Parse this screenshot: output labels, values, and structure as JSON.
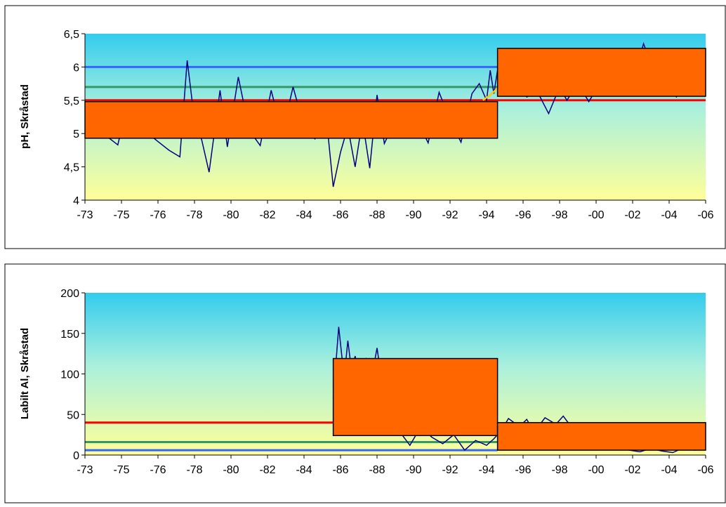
{
  "colors": {
    "orange_box": "#ff6600",
    "trace": "#000080",
    "red_line": "#ff0000",
    "green_line": "#339966",
    "blue_line": "#3366ff",
    "yellow_line": "#ffcc00",
    "bg_top": "#33ccee",
    "bg_bottom": "#ffff99"
  },
  "x_tick_labels": [
    "-73",
    "-75",
    "-76",
    "-78",
    "-80",
    "-82",
    "-84",
    "-86",
    "-88",
    "-90",
    "-92",
    "-94",
    "-96",
    "-98",
    "-00",
    "-02",
    "-04",
    "-06"
  ],
  "chart_data": [
    {
      "type": "line",
      "ylabel": "pH, Skråstad",
      "ylim": [
        4,
        6.5
      ],
      "y_ticks": [
        4,
        4.5,
        5,
        5.5,
        6,
        6.5
      ],
      "y_tick_labels": [
        "4",
        "4,5",
        "5",
        "5,5",
        "6",
        "6,5"
      ],
      "grid": false,
      "reference_lines": [
        {
          "color": "blue_line",
          "y": 6.0,
          "x_from": 0,
          "x_to": 11.3
        },
        {
          "color": "green_line",
          "y": 5.7,
          "x_from": 0,
          "x_to": 11.3
        },
        {
          "color": "red_line",
          "y": 5.5,
          "x_from": 0,
          "x_to": 17
        }
      ],
      "boxes": [
        {
          "x_from": 0,
          "x_to": 11.3,
          "y_low": 4.93,
          "y_high": 5.48
        },
        {
          "x_from": 11.3,
          "x_to": 17,
          "y_low": 5.56,
          "y_high": 6.28
        }
      ],
      "series": [
        {
          "x": [
            0,
            0.5,
            0.9,
            1.1,
            1.5,
            2.0,
            2.3,
            2.6,
            2.8,
            3.0,
            3.2,
            3.4,
            3.7,
            3.9,
            4.2,
            4.5,
            4.8,
            5.1,
            5.4,
            5.7,
            6.0,
            6.3,
            6.6,
            6.8,
            7.0,
            7.2,
            7.4,
            7.6,
            7.8,
            8.0,
            8.2,
            8.5,
            8.8,
            9.1,
            9.4,
            9.7,
            10.0,
            10.3,
            10.6,
            10.8,
            11.0,
            11.1,
            11.2,
            11.3,
            11.5,
            11.8,
            12.1,
            12.4,
            12.7,
            13.0,
            13.2,
            13.5,
            13.8,
            14.1,
            14.4,
            14.7,
            15.0,
            15.3,
            15.6,
            15.9,
            16.2,
            16.5,
            17.0
          ],
          "y": [
            5.2,
            5.0,
            4.83,
            5.3,
            5.1,
            4.88,
            4.75,
            4.65,
            6.1,
            5.2,
            4.9,
            4.42,
            5.65,
            4.8,
            5.85,
            5.05,
            4.82,
            5.65,
            5.0,
            5.7,
            5.1,
            4.92,
            5.3,
            4.2,
            4.72,
            5.1,
            4.5,
            5.2,
            4.48,
            5.58,
            4.85,
            5.2,
            5.0,
            5.2,
            4.86,
            5.62,
            5.2,
            4.87,
            5.6,
            5.75,
            5.5,
            5.95,
            5.6,
            5.95,
            5.6,
            5.75,
            5.55,
            5.62,
            5.3,
            5.7,
            5.5,
            5.75,
            5.48,
            5.75,
            5.9,
            5.6,
            5.8,
            6.35,
            5.9,
            5.7,
            5.55,
            5.9,
            5.7
          ]
        }
      ],
      "accent_series": {
        "color": "yellow_line",
        "x": [
          10.9,
          11.1,
          11.3
        ],
        "y": [
          5.5,
          5.58,
          5.68
        ]
      }
    },
    {
      "type": "line",
      "ylabel": "Labilt Al, Skråstad",
      "ylim": [
        0,
        200
      ],
      "y_ticks": [
        0,
        50,
        100,
        150,
        200
      ],
      "y_tick_labels": [
        "0",
        "50",
        "100",
        "150",
        "200"
      ],
      "grid": false,
      "reference_lines": [
        {
          "color": "red_line",
          "y": 40,
          "x_from": 0,
          "x_to": 6.8
        },
        {
          "color": "green_line",
          "y": 16,
          "x_from": 0,
          "x_to": 11.3
        },
        {
          "color": "blue_line",
          "y": 6,
          "x_from": 0,
          "x_to": 11.3
        }
      ],
      "boxes": [
        {
          "x_from": 6.8,
          "x_to": 11.3,
          "y_low": 24,
          "y_high": 119
        },
        {
          "x_from": 11.3,
          "x_to": 17,
          "y_low": 6,
          "y_high": 40
        }
      ],
      "series": [
        {
          "x": [
            6.8,
            6.95,
            7.1,
            7.2,
            7.3,
            7.4,
            7.55,
            7.7,
            7.85,
            8.0,
            8.15,
            8.3,
            8.6,
            8.9,
            9.2,
            9.5,
            9.8,
            10.1,
            10.4,
            10.7,
            11.0,
            11.2,
            11.4,
            11.6,
            11.9,
            12.1,
            12.3,
            12.6,
            12.9,
            13.1,
            13.4,
            13.7,
            14.0,
            14.3,
            14.6,
            14.9,
            15.2,
            15.5,
            15.8,
            16.1,
            16.4,
            16.7,
            17.0
          ],
          "y": [
            70,
            158,
            95,
            141,
            105,
            122,
            90,
            118,
            95,
            132,
            85,
            60,
            30,
            12,
            35,
            22,
            14,
            25,
            6,
            18,
            12,
            20,
            30,
            45,
            35,
            44,
            28,
            46,
            38,
            48,
            30,
            35,
            22,
            15,
            10,
            6,
            4,
            8,
            5,
            3,
            9,
            6,
            8
          ]
        }
      ]
    }
  ]
}
